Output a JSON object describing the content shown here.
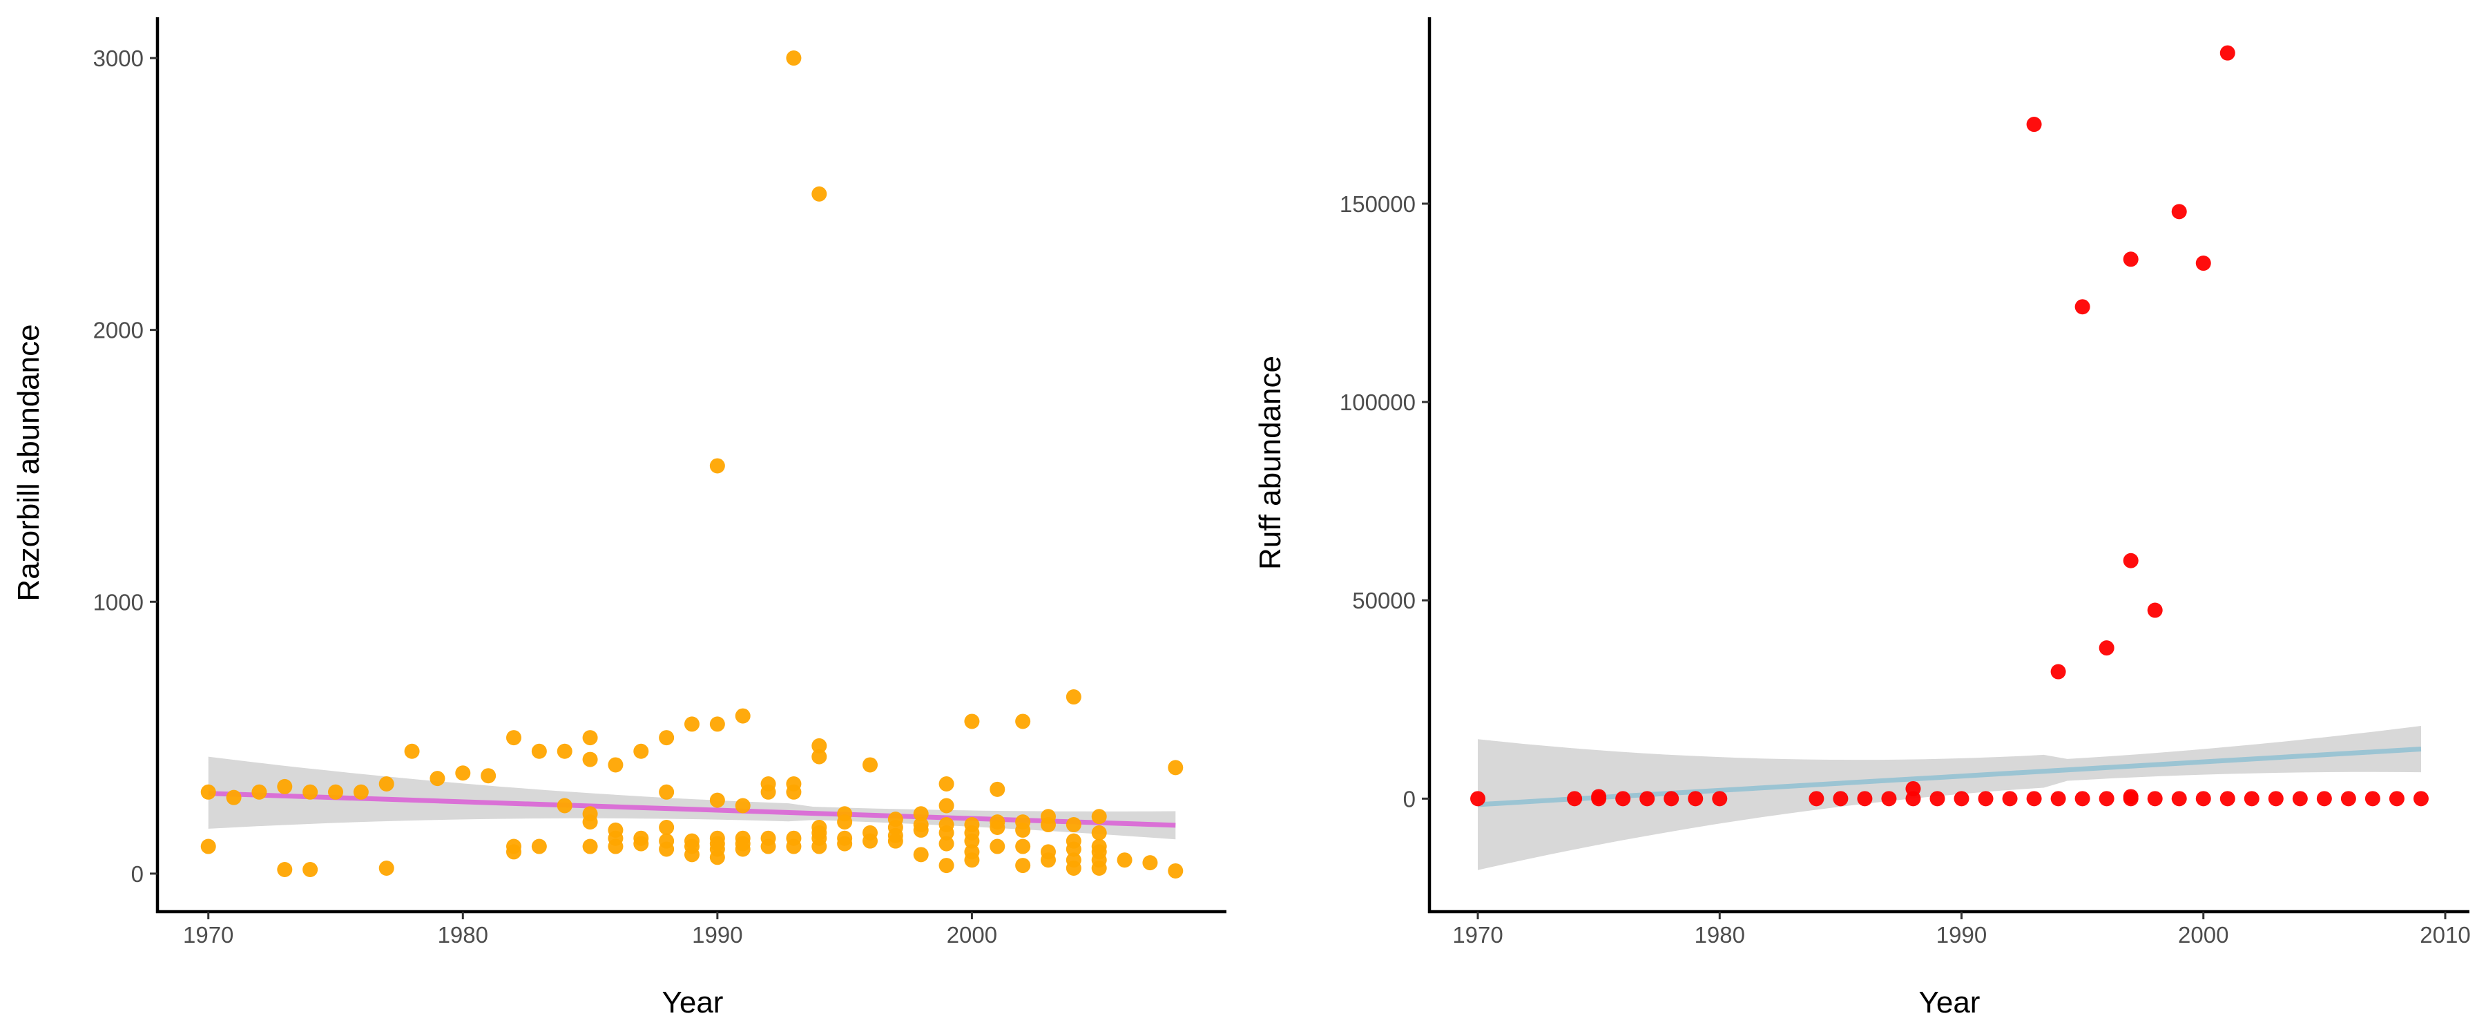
{
  "chart_data": [
    {
      "type": "scatter",
      "title": "",
      "xlabel": "Year",
      "ylabel": "Razorbill abundance",
      "xlim": [
        1968,
        2010
      ],
      "ylim": [
        -140,
        3150
      ],
      "xticks": [
        1970,
        1980,
        1990,
        2000
      ],
      "yticks": [
        0,
        1000,
        2000,
        3000
      ],
      "xtick_labels": [
        "1970",
        "1980",
        "1990",
        "2000"
      ],
      "ytick_labels": [
        "0",
        "1000",
        "2000",
        "3000"
      ],
      "grid": false,
      "point_color": "#FFA500",
      "points": [
        [
          1970,
          300
        ],
        [
          1970,
          100
        ],
        [
          1971,
          280
        ],
        [
          1972,
          300
        ],
        [
          1973,
          320
        ],
        [
          1973,
          15
        ],
        [
          1974,
          300
        ],
        [
          1974,
          15
        ],
        [
          1975,
          300
        ],
        [
          1976,
          300
        ],
        [
          1977,
          330
        ],
        [
          1977,
          20
        ],
        [
          1978,
          450
        ],
        [
          1979,
          350
        ],
        [
          1980,
          370
        ],
        [
          1981,
          360
        ],
        [
          1982,
          500
        ],
        [
          1982,
          100
        ],
        [
          1982,
          80
        ],
        [
          1983,
          450
        ],
        [
          1983,
          100
        ],
        [
          1984,
          450
        ],
        [
          1984,
          250
        ],
        [
          1985,
          500
        ],
        [
          1985,
          420
        ],
        [
          1985,
          220
        ],
        [
          1985,
          190
        ],
        [
          1985,
          100
        ],
        [
          1986,
          400
        ],
        [
          1986,
          160
        ],
        [
          1986,
          130
        ],
        [
          1986,
          100
        ],
        [
          1987,
          450
        ],
        [
          1987,
          130
        ],
        [
          1987,
          110
        ],
        [
          1988,
          500
        ],
        [
          1988,
          300
        ],
        [
          1988,
          170
        ],
        [
          1988,
          120
        ],
        [
          1988,
          90
        ],
        [
          1989,
          550
        ],
        [
          1989,
          120
        ],
        [
          1989,
          100
        ],
        [
          1989,
          70
        ],
        [
          1990,
          1500
        ],
        [
          1990,
          550
        ],
        [
          1990,
          270
        ],
        [
          1990,
          130
        ],
        [
          1990,
          110
        ],
        [
          1990,
          90
        ],
        [
          1990,
          60
        ],
        [
          1991,
          580
        ],
        [
          1991,
          250
        ],
        [
          1991,
          130
        ],
        [
          1991,
          110
        ],
        [
          1991,
          90
        ],
        [
          1992,
          330
        ],
        [
          1992,
          300
        ],
        [
          1992,
          130
        ],
        [
          1992,
          100
        ],
        [
          1993,
          3000
        ],
        [
          1993,
          330
        ],
        [
          1993,
          300
        ],
        [
          1993,
          130
        ],
        [
          1993,
          100
        ],
        [
          1994,
          2500
        ],
        [
          1994,
          470
        ],
        [
          1994,
          430
        ],
        [
          1994,
          170
        ],
        [
          1994,
          150
        ],
        [
          1994,
          130
        ],
        [
          1994,
          100
        ],
        [
          1995,
          220
        ],
        [
          1995,
          190
        ],
        [
          1995,
          130
        ],
        [
          1995,
          110
        ],
        [
          1996,
          400
        ],
        [
          1996,
          150
        ],
        [
          1996,
          120
        ],
        [
          1997,
          200
        ],
        [
          1997,
          170
        ],
        [
          1997,
          140
        ],
        [
          1997,
          120
        ],
        [
          1998,
          220
        ],
        [
          1998,
          180
        ],
        [
          1998,
          160
        ],
        [
          1998,
          70
        ],
        [
          1999,
          330
        ],
        [
          1999,
          250
        ],
        [
          1999,
          180
        ],
        [
          1999,
          150
        ],
        [
          1999,
          110
        ],
        [
          1999,
          30
        ],
        [
          2000,
          560
        ],
        [
          2000,
          180
        ],
        [
          2000,
          150
        ],
        [
          2000,
          120
        ],
        [
          2000,
          80
        ],
        [
          2000,
          50
        ],
        [
          2001,
          310
        ],
        [
          2001,
          190
        ],
        [
          2001,
          170
        ],
        [
          2001,
          100
        ],
        [
          2002,
          560
        ],
        [
          2002,
          190
        ],
        [
          2002,
          160
        ],
        [
          2002,
          100
        ],
        [
          2002,
          30
        ],
        [
          2003,
          210
        ],
        [
          2003,
          180
        ],
        [
          2003,
          80
        ],
        [
          2003,
          50
        ],
        [
          2004,
          650
        ],
        [
          2004,
          180
        ],
        [
          2004,
          120
        ],
        [
          2004,
          90
        ],
        [
          2004,
          50
        ],
        [
          2004,
          20
        ],
        [
          2005,
          210
        ],
        [
          2005,
          150
        ],
        [
          2005,
          100
        ],
        [
          2005,
          80
        ],
        [
          2005,
          50
        ],
        [
          2005,
          20
        ],
        [
          2006,
          50
        ],
        [
          2007,
          40
        ],
        [
          2008,
          390
        ],
        [
          2008,
          10
        ]
      ],
      "trend": {
        "color": "#DA70D6",
        "x": [
          1970,
          2008
        ],
        "y": [
          295,
          178
        ],
        "band_color": "#BEBEBE",
        "band_lower": [
          165,
          80
        ],
        "band_upper": [
          430,
          275
        ]
      }
    },
    {
      "type": "scatter",
      "title": "",
      "xlabel": "Year",
      "ylabel": "Ruff abundance",
      "xlim": [
        1968,
        2011
      ],
      "ylim": [
        -28500,
        197000
      ],
      "xticks": [
        1970,
        1980,
        1990,
        2000,
        2010
      ],
      "yticks": [
        0,
        50000,
        100000,
        150000
      ],
      "xtick_labels": [
        "1970",
        "1980",
        "1990",
        "2000",
        "2010"
      ],
      "ytick_labels": [
        "0",
        "50000",
        "100000",
        "150000"
      ],
      "grid": false,
      "point_color": "#FF0000",
      "points": [
        [
          1970,
          0
        ],
        [
          1974,
          0
        ],
        [
          1975,
          0
        ],
        [
          1975,
          500
        ],
        [
          1976,
          0
        ],
        [
          1977,
          0
        ],
        [
          1978,
          0
        ],
        [
          1979,
          0
        ],
        [
          1980,
          0
        ],
        [
          1984,
          0
        ],
        [
          1985,
          0
        ],
        [
          1986,
          0
        ],
        [
          1987,
          0
        ],
        [
          1988,
          0
        ],
        [
          1988,
          2500
        ],
        [
          1989,
          0
        ],
        [
          1990,
          0
        ],
        [
          1991,
          0
        ],
        [
          1992,
          0
        ],
        [
          1993,
          0
        ],
        [
          1993,
          170000
        ],
        [
          1994,
          0
        ],
        [
          1994,
          32000
        ],
        [
          1995,
          0
        ],
        [
          1995,
          124000
        ],
        [
          1996,
          0
        ],
        [
          1996,
          38000
        ],
        [
          1997,
          0
        ],
        [
          1997,
          500
        ],
        [
          1997,
          60000
        ],
        [
          1997,
          136000
        ],
        [
          1998,
          0
        ],
        [
          1998,
          47500
        ],
        [
          1999,
          0
        ],
        [
          1999,
          148000
        ],
        [
          2000,
          0
        ],
        [
          2000,
          135000
        ],
        [
          2001,
          0
        ],
        [
          2001,
          188000
        ],
        [
          2002,
          0
        ],
        [
          2003,
          0
        ],
        [
          2004,
          0
        ],
        [
          2005,
          0
        ],
        [
          2006,
          0
        ],
        [
          2007,
          0
        ],
        [
          2008,
          0
        ],
        [
          2009,
          0
        ]
      ],
      "trend": {
        "color": "#9BC4D3",
        "x": [
          1970,
          2009
        ],
        "y": [
          -1500,
          12500
        ],
        "band_color": "#BEBEBE",
        "band_lower": [
          -18000,
          1500
        ],
        "band_upper": [
          15000,
          23500
        ]
      }
    }
  ]
}
